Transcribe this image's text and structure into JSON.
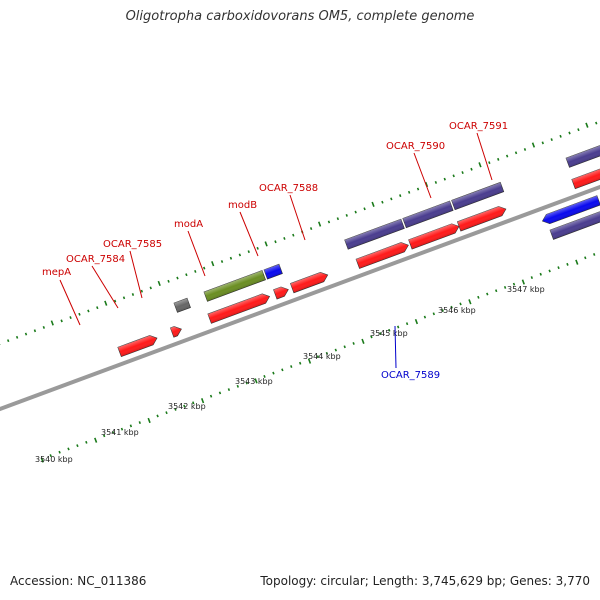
{
  "title": "Oligotropha carboxidovorans OM5, complete genome",
  "footer": {
    "accession": "Accession: NC_011386",
    "summary": "Topology: circular; Length: 3,745,629 bp; Genes: 3,770"
  },
  "colors": {
    "forward_cds": "#ff1a1a",
    "cds_strand_a": "#4a3d8f",
    "cds_strand_b": "#0a0aee",
    "rna_gene": "#6b8e23",
    "other": "#666666",
    "tick": "#1a7a1a",
    "backbone": "#999999",
    "label_forward": "#cc0000",
    "label_reverse": "#0000cc"
  },
  "kbp_labels": [
    "3540 kbp",
    "3541 kbp",
    "3542 kbp",
    "3543 kbp",
    "3544 kbp",
    "3545 kbp",
    "3546 kbp",
    "3547 kbp"
  ],
  "gene_labels": [
    {
      "name": "mepA",
      "color": "label_forward"
    },
    {
      "name": "OCAR_7584",
      "color": "label_forward"
    },
    {
      "name": "OCAR_7585",
      "color": "label_forward"
    },
    {
      "name": "modA",
      "color": "label_forward"
    },
    {
      "name": "modB",
      "color": "label_forward"
    },
    {
      "name": "OCAR_7588",
      "color": "label_forward"
    },
    {
      "name": "OCAR_7590",
      "color": "label_forward"
    },
    {
      "name": "OCAR_7591",
      "color": "label_forward"
    },
    {
      "name": "OCAR_7589",
      "color": "label_reverse"
    }
  ]
}
